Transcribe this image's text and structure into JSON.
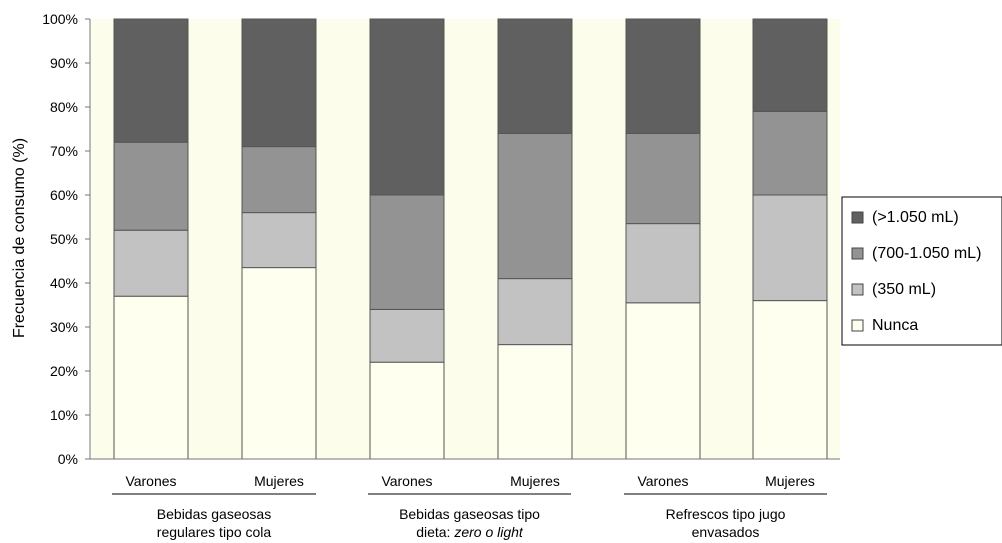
{
  "chart_data": {
    "type": "bar",
    "stacked": true,
    "xlabel": "",
    "ylabel": "Frecuencia de consumo (%)",
    "ylim": [
      0,
      100
    ],
    "yticks": [
      "0%",
      "10%",
      "20%",
      "30%",
      "40%",
      "50%",
      "60%",
      "70%",
      "80%",
      "90%",
      "100%"
    ],
    "grid": false,
    "legend_position": "right",
    "background": "#fdfdec",
    "groups": [
      {
        "label_line1": "Bebidas gaseosas",
        "label_line2": "regulares tipo cola",
        "label_line2_plain": "",
        "label_line2_italic": ""
      },
      {
        "label_line1": "Bebidas gaseosas tipo",
        "label_line2": "",
        "label_line2_plain": "dieta: ",
        "label_line2_italic": "zero o light"
      },
      {
        "label_line1": "Refrescos tipo jugo",
        "label_line2": "envasados",
        "label_line2_plain": "",
        "label_line2_italic": ""
      }
    ],
    "categories": [
      "Varones",
      "Mujeres",
      "Varones",
      "Mujeres",
      "Varones",
      "Mujeres"
    ],
    "series": [
      {
        "name": "Nunca",
        "color": "#fffff0",
        "values": [
          37,
          43.5,
          22,
          26,
          35.5,
          36
        ]
      },
      {
        "name": "(350 mL)",
        "color": "#c2c2c2",
        "values": [
          15,
          12.5,
          12,
          15,
          18,
          24
        ]
      },
      {
        "name": "(700-1.050 mL)",
        "color": "#939393",
        "values": [
          20,
          15,
          26,
          33,
          20.5,
          19
        ]
      },
      {
        "name": "(>1.050 mL)",
        "color": "#606060",
        "values": [
          28,
          29,
          40,
          26,
          26,
          21
        ]
      }
    ],
    "legend_order": [
      "(>1.050 mL)",
      "(700-1.050 mL)",
      "(350 mL)",
      "Nunca"
    ]
  }
}
